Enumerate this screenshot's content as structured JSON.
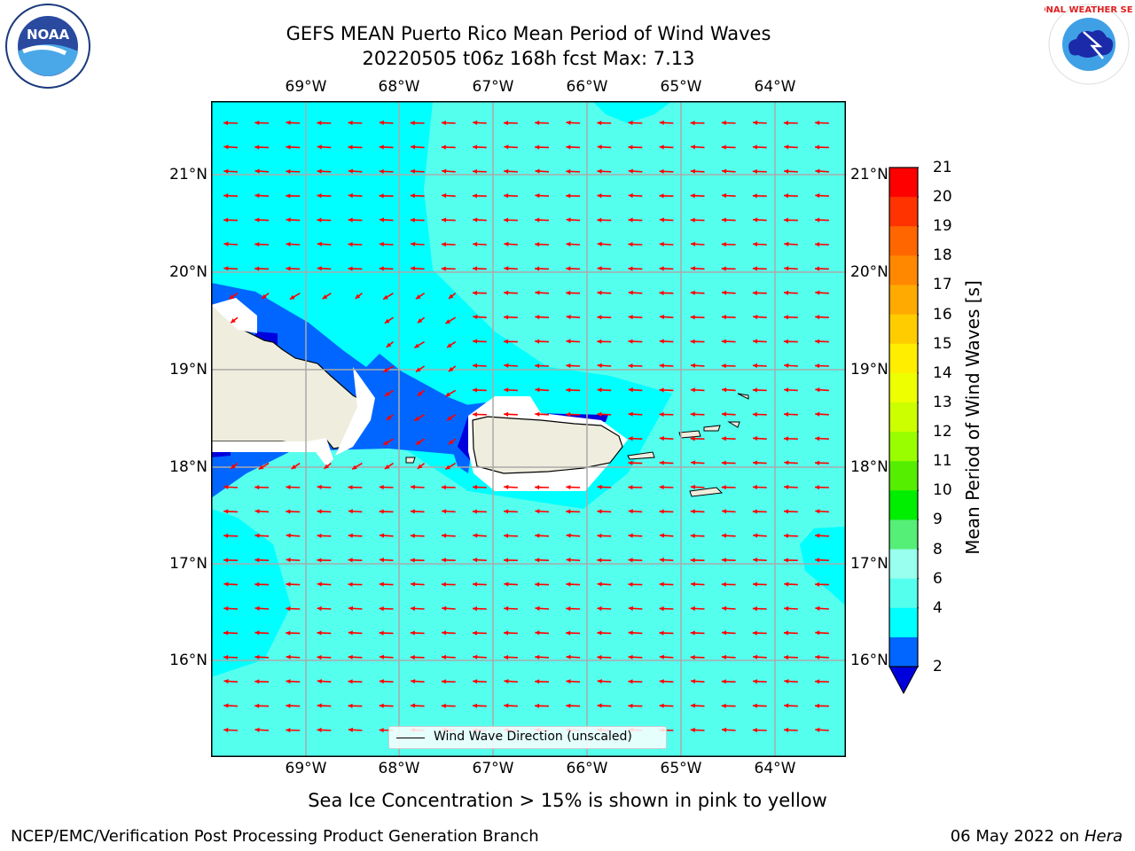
{
  "title_line1": "GEFS MEAN Puerto Rico Mean Period of Wind Waves",
  "title_line2": "20220505 t06z 168h fcst   Max: 7.13",
  "longitude_labels": [
    "69°W",
    "68°W",
    "67°W",
    "66°W",
    "65°W",
    "64°W"
  ],
  "latitude_labels": [
    "21°N",
    "20°N",
    "19°N",
    "18°N",
    "17°N",
    "16°N"
  ],
  "legend_label": "Wind Wave Direction (unscaled)",
  "colorbar": {
    "label": "Mean Period of Wind Waves [s]",
    "ticks": [
      "21",
      "20",
      "19",
      "18",
      "17",
      "16",
      "15",
      "14",
      "13",
      "12",
      "11",
      "10",
      "9",
      "8",
      "6",
      "4",
      "2"
    ],
    "colors": [
      "#ff0000",
      "#ff3300",
      "#ff6600",
      "#ff8800",
      "#ffaa00",
      "#ffcc00",
      "#ffee00",
      "#eeff00",
      "#ccff00",
      "#99ff00",
      "#55ee00",
      "#00ee00",
      "#55ee77",
      "#99ffee",
      "#55ffee",
      "#00ffff",
      "#0066ff"
    ],
    "under_color": "#0000dd"
  },
  "colors": {
    "sea_light": "#55ffee",
    "sea_cyan": "#00ffff",
    "shallow": "#0066ff",
    "deep_blue": "#0000dd",
    "land": "#efeddd",
    "arrow": "#ff0000",
    "grid": "#aaaaaa"
  },
  "subtitle": "Sea Ice Concentration > 15% is shown in pink to yellow",
  "footer_left": "NCEP/EMC/Verification Post Processing Product Generation Branch",
  "footer_right_date": "06 May 2022 on",
  "footer_right_host": "Hera",
  "logos": {
    "noaa": {
      "icon": "noaa-logo",
      "text": "NOAA"
    },
    "nws": {
      "icon": "nws-logo",
      "text": "NATIONAL WEATHER SERVICE"
    }
  }
}
